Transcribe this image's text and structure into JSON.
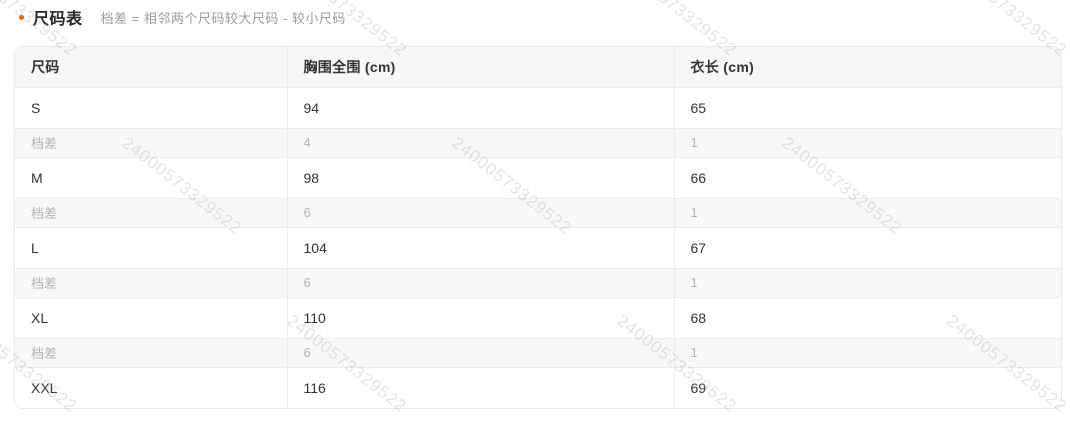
{
  "header": {
    "title": "尺码表",
    "subtitle": "档差 = 相邻两个尺码较大尺码 - 较小尺码"
  },
  "size_table": {
    "columns": [
      "尺码",
      "胸围全围 (cm)",
      "衣长 (cm)"
    ],
    "rows": [
      {
        "type": "size",
        "cells": [
          "S",
          "94",
          "65"
        ]
      },
      {
        "type": "diff",
        "cells": [
          "档差",
          "4",
          "1"
        ]
      },
      {
        "type": "size",
        "cells": [
          "M",
          "98",
          "66"
        ]
      },
      {
        "type": "diff",
        "cells": [
          "档差",
          "6",
          "1"
        ]
      },
      {
        "type": "size",
        "cells": [
          "L",
          "104",
          "67"
        ]
      },
      {
        "type": "diff",
        "cells": [
          "档差",
          "6",
          "1"
        ]
      },
      {
        "type": "size",
        "cells": [
          "XL",
          "110",
          "68"
        ]
      },
      {
        "type": "diff",
        "cells": [
          "档差",
          "6",
          "1"
        ]
      },
      {
        "type": "size",
        "cells": [
          "XXL",
          "116",
          "69"
        ]
      }
    ]
  },
  "watermark": {
    "text": "24000573329522"
  },
  "colors": {
    "accent_bullet": "#e8611c",
    "title_text": "#262626",
    "subtitle_text": "#9b9b9b",
    "table_border": "#e9e9e9",
    "header_row_bg": "#f7f7f7",
    "diff_row_bg": "#f8f8f8",
    "diff_row_text": "#b3b3b3",
    "body_text": "#333333"
  }
}
